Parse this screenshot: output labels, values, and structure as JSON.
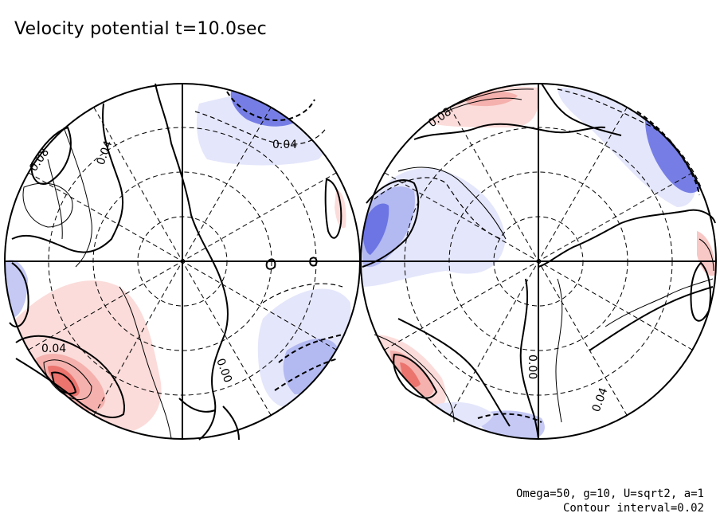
{
  "title": "Velocity potential t=10.0sec",
  "footer": {
    "params": "Omega=50, g=10, U=sqrt2, a=1",
    "contour_interval": "Contour interval=0.02"
  },
  "colors": {
    "positive": "#e8605a",
    "positive_light": "#fbdcda",
    "negative": "#5a64e0",
    "negative_light": "#e4e6fb",
    "line": "#000000"
  },
  "contour_labels": {
    "left_top": "0.04",
    "left_upper_left": "0.04",
    "left_far_left": "0.08",
    "left_lower": "0.04",
    "left_center": "0.00",
    "right_top_left": "0.08",
    "right_center": "0.00",
    "right_lower": "0.04"
  }
}
